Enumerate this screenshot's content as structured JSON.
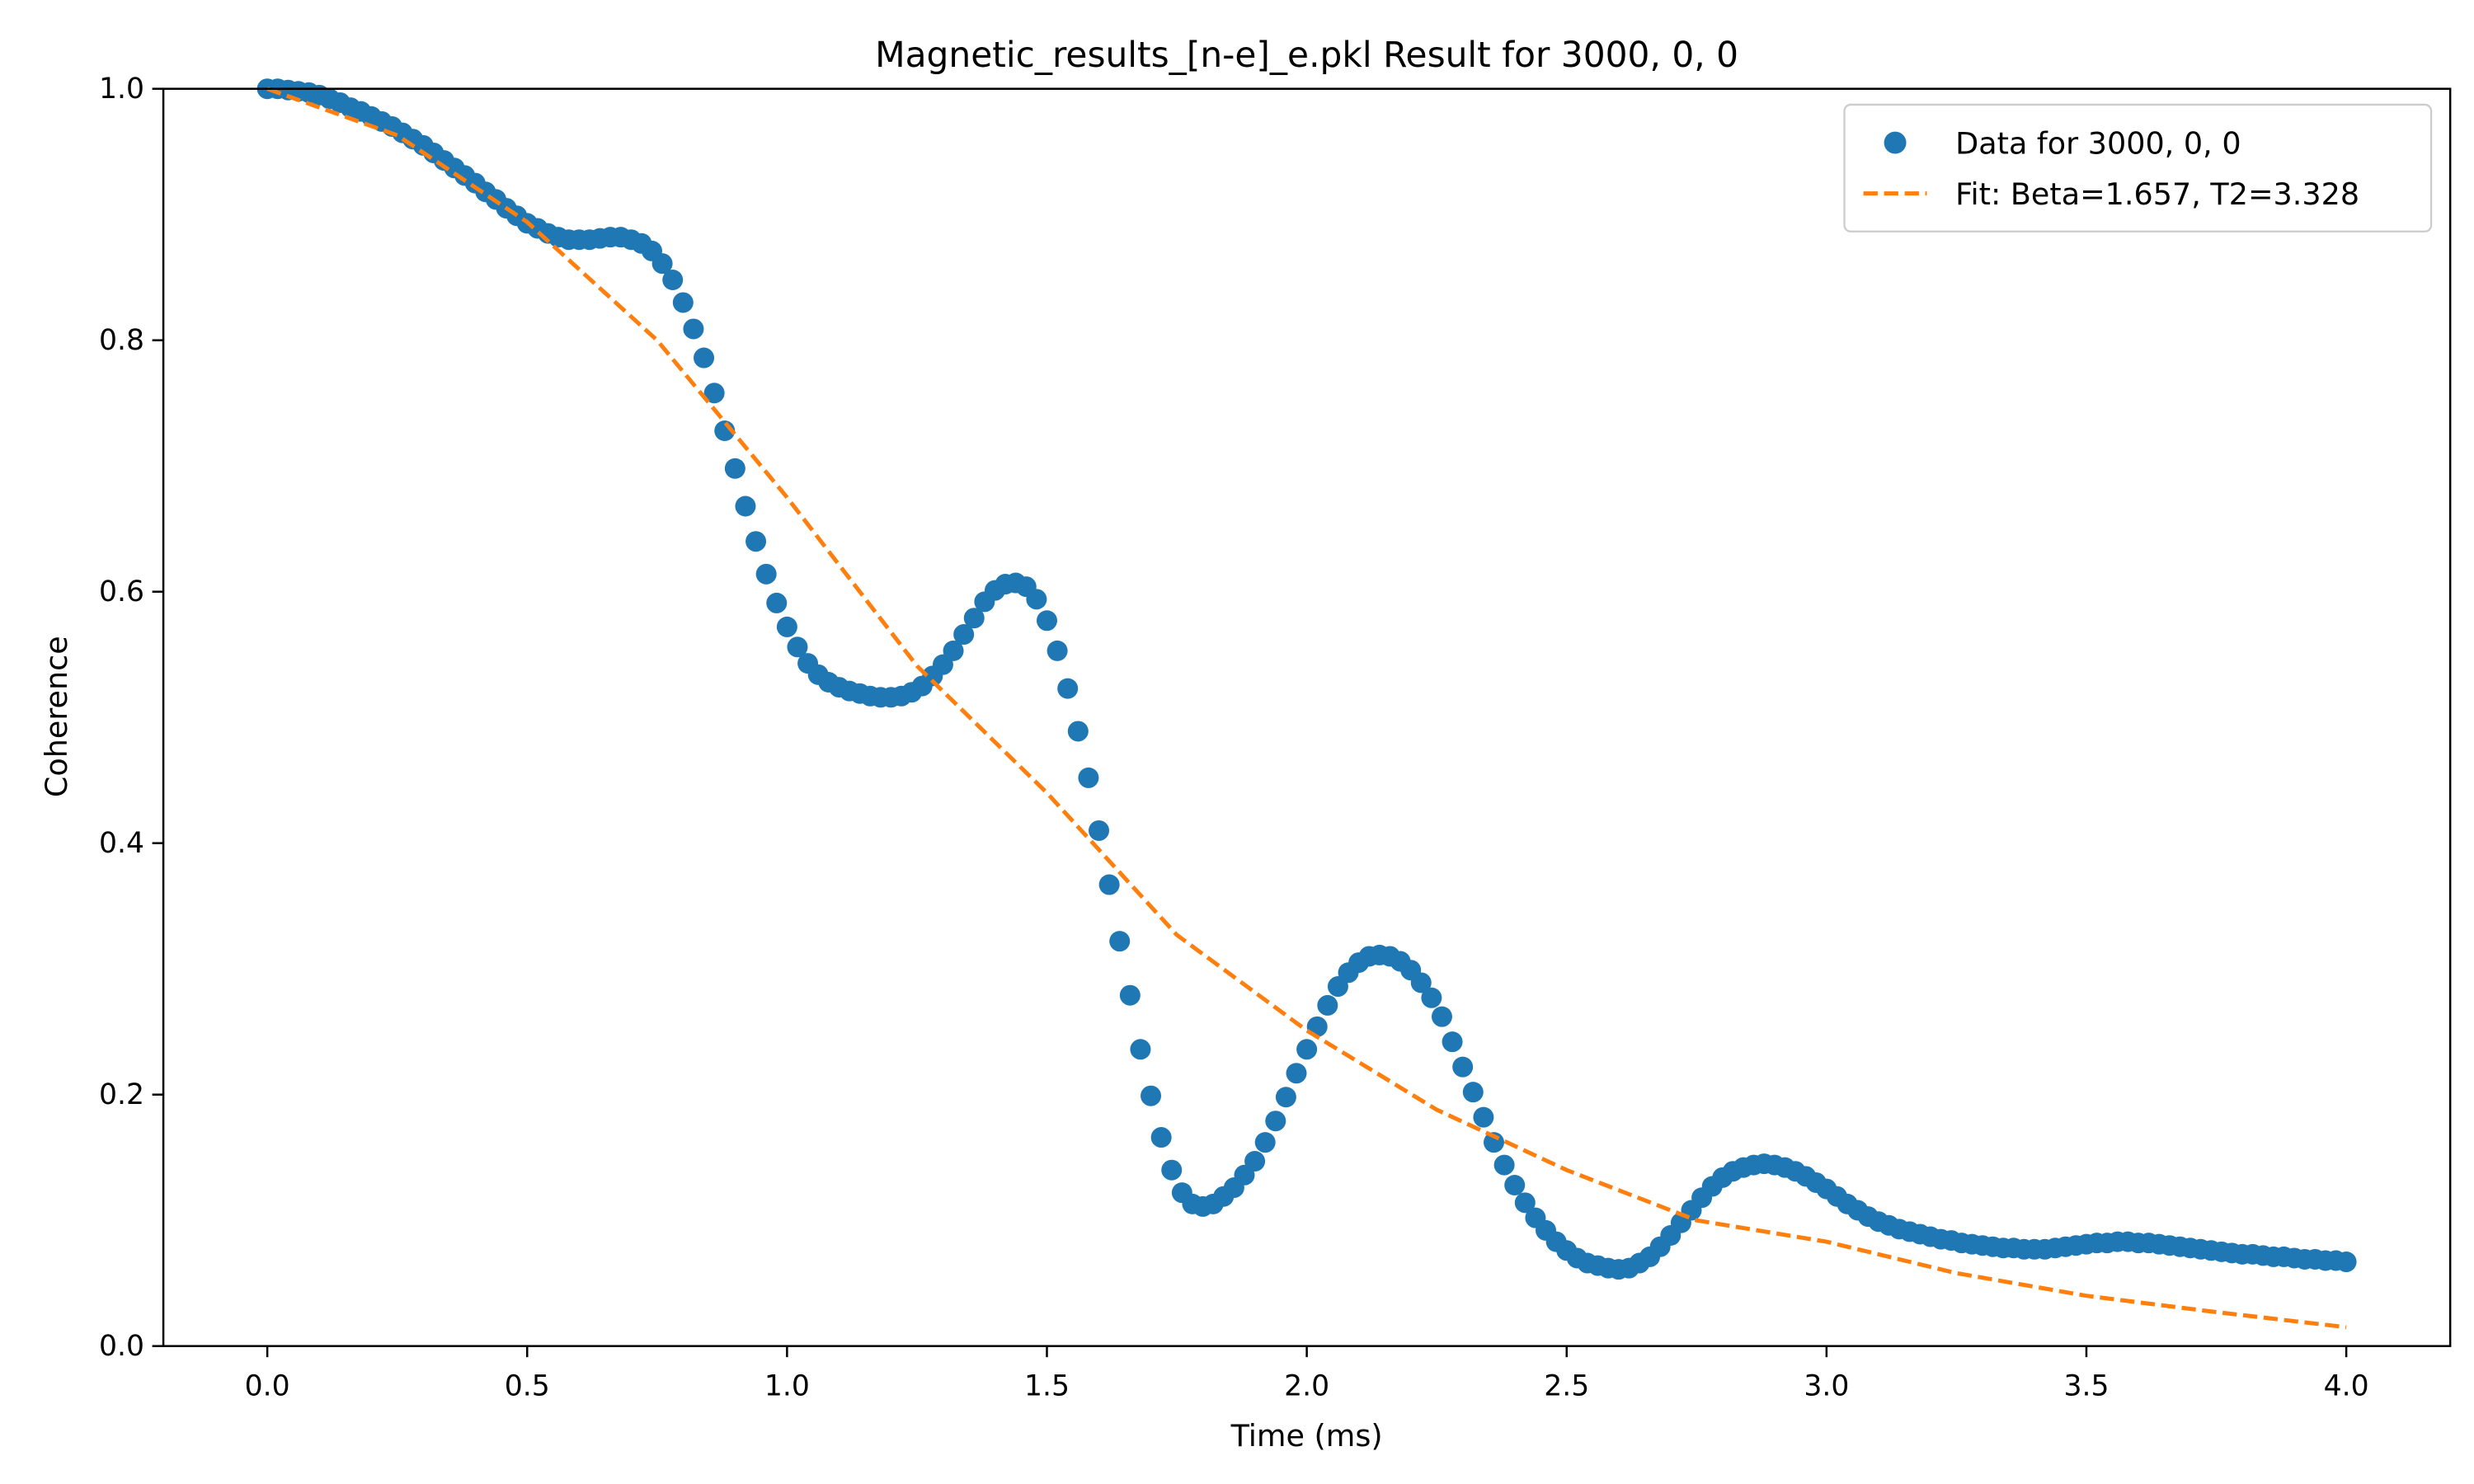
{
  "chart_data": {
    "type": "scatter",
    "title": "Magnetic_results_[n-e]_e.pkl Result for 3000, 0, 0",
    "x_label": "Time (ms)",
    "y_label": "Coherence",
    "xlim": [
      -0.2,
      4.2
    ],
    "ylim": [
      0,
      1
    ],
    "xticks": [
      {
        "value": 0,
        "label": "0.0"
      },
      0.5,
      {
        "value": 1,
        "label": "1.0"
      },
      1.5,
      {
        "value": 2,
        "label": "2.0"
      },
      2.5,
      {
        "value": 3,
        "label": "3.0"
      },
      3.5,
      {
        "value": 4,
        "label": "4.0"
      }
    ],
    "yticks": [
      {
        "value": 0,
        "label": "0.0"
      },
      0.2,
      0.4,
      0.6,
      0.8,
      {
        "value": 1,
        "label": "1.0"
      }
    ],
    "grid": false,
    "legend": "upper right",
    "series": [
      {
        "name": "Data for 3000, 0, 0",
        "type": "scatter",
        "color": "#1f77b4",
        "x": [
          0,
          0.02,
          0.04,
          0.06,
          0.08,
          0.1,
          0.12,
          0.14,
          0.16,
          0.18,
          0.2,
          0.22,
          0.24,
          0.26,
          0.28,
          0.3,
          0.32,
          0.34,
          0.36,
          0.38,
          0.4,
          0.42,
          0.44,
          0.46,
          0.48,
          0.5,
          0.52,
          0.54,
          0.56,
          0.58,
          0.6,
          0.62,
          0.64,
          0.66,
          0.68,
          0.7,
          0.72,
          0.74,
          0.76,
          0.78,
          0.8,
          0.82,
          0.84,
          0.86,
          0.88,
          0.9,
          0.92,
          0.94,
          0.96,
          0.98,
          1,
          1.02,
          1.04,
          1.06,
          1.08,
          1.1,
          1.12,
          1.14,
          1.16,
          1.18,
          1.2,
          1.22,
          1.24,
          1.26,
          1.28,
          1.3,
          1.32,
          1.34,
          1.36,
          1.38,
          1.4,
          1.42,
          1.44,
          1.46,
          1.48,
          1.5,
          1.52,
          1.54,
          1.56,
          1.58,
          1.6,
          1.62,
          1.64,
          1.66,
          1.68,
          1.7,
          1.72,
          1.74,
          1.76,
          1.78,
          1.8,
          1.82,
          1.84,
          1.86,
          1.88,
          1.9,
          1.92,
          1.94,
          1.96,
          1.98,
          2,
          2.02,
          2.04,
          2.06,
          2.08,
          2.1,
          2.12,
          2.14,
          2.16,
          2.18,
          2.2,
          2.22,
          2.24,
          2.26,
          2.28,
          2.3,
          2.32,
          2.34,
          2.36,
          2.38,
          2.4,
          2.42,
          2.44,
          2.46,
          2.48,
          2.5,
          2.52,
          2.54,
          2.56,
          2.58,
          2.6,
          2.62,
          2.64,
          2.66,
          2.68,
          2.7,
          2.72,
          2.74,
          2.76,
          2.78,
          2.8,
          2.82,
          2.84,
          2.86,
          2.88,
          2.9,
          2.92,
          2.94,
          2.96,
          2.98,
          3,
          3.02,
          3.04,
          3.06,
          3.08,
          3.1,
          3.12,
          3.14,
          3.16,
          3.18,
          3.2,
          3.22,
          3.24,
          3.26,
          3.28,
          3.3,
          3.32,
          3.34,
          3.36,
          3.38,
          3.4,
          3.42,
          3.44,
          3.46,
          3.48,
          3.5,
          3.52,
          3.54,
          3.56,
          3.58,
          3.6,
          3.62,
          3.64,
          3.66,
          3.68,
          3.7,
          3.72,
          3.74,
          3.76,
          3.78,
          3.8,
          3.82,
          3.84,
          3.86,
          3.88,
          3.9,
          3.92,
          3.94,
          3.96,
          3.98,
          4
        ],
        "values": [
          1,
          1,
          0.999,
          0.998,
          0.997,
          0.995,
          0.992,
          0.989,
          0.985,
          0.982,
          0.978,
          0.974,
          0.97,
          0.965,
          0.96,
          0.955,
          0.949,
          0.943,
          0.937,
          0.931,
          0.925,
          0.918,
          0.912,
          0.905,
          0.899,
          0.893,
          0.889,
          0.885,
          0.882,
          0.88,
          0.88,
          0.88,
          0.881,
          0.882,
          0.882,
          0.88,
          0.877,
          0.871,
          0.861,
          0.848,
          0.83,
          0.809,
          0.786,
          0.758,
          0.728,
          0.698,
          0.668,
          0.64,
          0.614,
          0.591,
          0.572,
          0.556,
          0.543,
          0.534,
          0.528,
          0.524,
          0.521,
          0.519,
          0.517,
          0.516,
          0.516,
          0.517,
          0.52,
          0.525,
          0.533,
          0.542,
          0.553,
          0.566,
          0.579,
          0.592,
          0.601,
          0.606,
          0.607,
          0.604,
          0.594,
          0.577,
          0.553,
          0.523,
          0.489,
          0.452,
          0.41,
          0.367,
          0.322,
          0.279,
          0.236,
          0.199,
          0.166,
          0.14,
          0.122,
          0.113,
          0.111,
          0.113,
          0.119,
          0.126,
          0.136,
          0.147,
          0.162,
          0.179,
          0.198,
          0.217,
          0.236,
          0.254,
          0.271,
          0.286,
          0.297,
          0.305,
          0.31,
          0.311,
          0.31,
          0.306,
          0.299,
          0.289,
          0.277,
          0.262,
          0.242,
          0.222,
          0.202,
          0.182,
          0.162,
          0.144,
          0.128,
          0.114,
          0.102,
          0.092,
          0.083,
          0.076,
          0.07,
          0.066,
          0.064,
          0.062,
          0.061,
          0.062,
          0.066,
          0.071,
          0.079,
          0.088,
          0.098,
          0.108,
          0.118,
          0.127,
          0.134,
          0.139,
          0.142,
          0.144,
          0.145,
          0.144,
          0.142,
          0.139,
          0.135,
          0.13,
          0.125,
          0.119,
          0.113,
          0.108,
          0.103,
          0.099,
          0.096,
          0.093,
          0.091,
          0.089,
          0.087,
          0.085,
          0.084,
          0.082,
          0.081,
          0.08,
          0.079,
          0.078,
          0.078,
          0.077,
          0.077,
          0.077,
          0.078,
          0.079,
          0.08,
          0.081,
          0.082,
          0.082,
          0.083,
          0.083,
          0.082,
          0.082,
          0.081,
          0.08,
          0.079,
          0.078,
          0.077,
          0.076,
          0.075,
          0.074,
          0.073,
          0.073,
          0.072,
          0.071,
          0.071,
          0.07,
          0.069,
          0.069,
          0.068,
          0.068,
          0.067
        ]
      },
      {
        "name": "Fit: Beta=1.657, T2=3.328",
        "type": "line",
        "linestyle": "dashed",
        "color": "#ff7f0e",
        "x": [
          0,
          0.25,
          0.5,
          0.75,
          1,
          1.25,
          1.5,
          1.75,
          2,
          2.25,
          2.5,
          2.75,
          3,
          3.25,
          3.5,
          3.75,
          4
        ],
        "values": [
          1,
          0.963,
          0.894,
          0.8,
          0.675,
          0.541,
          0.44,
          0.327,
          0.251,
          0.188,
          0.14,
          0.1,
          0.083,
          0.058,
          0.04,
          0.027,
          0.015
        ]
      }
    ]
  }
}
